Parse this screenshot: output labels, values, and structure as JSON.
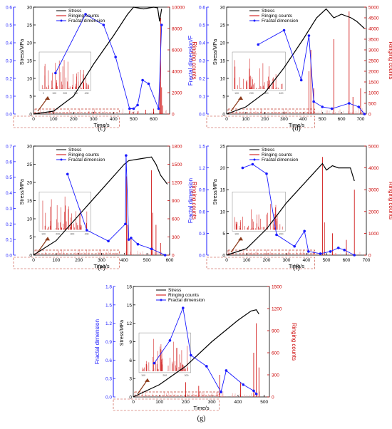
{
  "chart_data": [
    {
      "panel_label": "(c)",
      "type": "line",
      "xlabel": "Time/s",
      "ylabel_left": "Fractal dimension",
      "ylabel_stress": "Stress/MPa",
      "ylabel_right": "Ringing counts",
      "xlim": [
        0,
        680
      ],
      "x_ticks": [
        0,
        100,
        200,
        300,
        400,
        500,
        600
      ],
      "fd_lim": [
        0,
        0.6
      ],
      "fd_ticks": [
        0.0,
        0.1,
        0.2,
        0.3,
        0.4,
        0.5,
        0.6
      ],
      "stress_lim": [
        0,
        30
      ],
      "stress_ticks": [
        0,
        5,
        10,
        15,
        20,
        25,
        30
      ],
      "rc_lim": [
        0,
        10000
      ],
      "rc_ticks": [
        0,
        2000,
        4000,
        6000,
        8000,
        10000
      ],
      "legend": [
        "Stress",
        "Ringing counts",
        "Fractal dimension"
      ],
      "inset_x_ticks": [
        "0",
        "100",
        "200",
        "300",
        "400"
      ],
      "stress": [
        [
          0,
          0
        ],
        [
          100,
          0.8
        ],
        [
          200,
          5
        ],
        [
          300,
          14
        ],
        [
          400,
          22
        ],
        [
          470,
          28
        ],
        [
          500,
          30
        ],
        [
          550,
          29.5
        ],
        [
          600,
          30
        ],
        [
          620,
          29.8
        ],
        [
          630,
          26
        ],
        [
          640,
          29.5
        ]
      ],
      "fractal_dimension": [
        [
          110,
          0.23
        ],
        [
          260,
          0.56
        ],
        [
          350,
          0.5
        ],
        [
          410,
          0.32
        ],
        [
          480,
          0.03
        ],
        [
          500,
          0.03
        ],
        [
          520,
          0.05
        ],
        [
          545,
          0.19
        ],
        [
          575,
          0.17
        ],
        [
          625,
          0.03
        ],
        [
          640,
          0.5
        ]
      ],
      "ringing_spikes": [
        [
          630,
          3000
        ],
        [
          635,
          9000
        ],
        [
          640,
          2500
        ],
        [
          645,
          800
        ],
        [
          480,
          300
        ],
        [
          520,
          250
        ],
        [
          560,
          400
        ],
        [
          600,
          500
        ]
      ]
    },
    {
      "panel_label": "(d)",
      "type": "line",
      "xlabel": "Time/s",
      "ylabel_left": "Fractal dimension/F",
      "ylabel_stress": "Stress/MPa",
      "ylabel_right": "Ringing counts",
      "xlim": [
        0,
        730
      ],
      "x_ticks": [
        0,
        100,
        200,
        300,
        400,
        500,
        600,
        700
      ],
      "fd_lim": [
        0,
        0.6
      ],
      "fd_ticks": [
        0.0,
        0.1,
        0.2,
        0.3,
        0.4,
        0.5,
        0.6
      ],
      "stress_lim": [
        0,
        30
      ],
      "stress_ticks": [
        0,
        5,
        10,
        15,
        20,
        25,
        30
      ],
      "rc_lim": [
        0,
        5000
      ],
      "rc_ticks": [
        0,
        500,
        1000,
        1500,
        2000,
        2500,
        3000,
        3500,
        4000,
        4500,
        5000
      ],
      "legend": [
        "Stress",
        "Ringing counts",
        "Fractal dimension"
      ],
      "inset_x_ticks": [
        "100",
        "200",
        "300",
        "400"
      ],
      "stress": [
        [
          0,
          0
        ],
        [
          100,
          2
        ],
        [
          200,
          6
        ],
        [
          300,
          13
        ],
        [
          400,
          21
        ],
        [
          470,
          27
        ],
        [
          520,
          29.5
        ],
        [
          560,
          27
        ],
        [
          600,
          28
        ],
        [
          650,
          27
        ],
        [
          680,
          26
        ],
        [
          720,
          24
        ]
      ],
      "fractal_dimension": [
        [
          165,
          0.39
        ],
        [
          300,
          0.47
        ],
        [
          390,
          0.19
        ],
        [
          430,
          0.44
        ],
        [
          455,
          0.07
        ],
        [
          500,
          0.04
        ],
        [
          550,
          0.03
        ],
        [
          640,
          0.06
        ],
        [
          690,
          0.04
        ],
        [
          720,
          0.0
        ]
      ],
      "ringing_spikes": [
        [
          430,
          2000
        ],
        [
          440,
          3000
        ],
        [
          455,
          1200
        ],
        [
          560,
          3500
        ],
        [
          640,
          4800
        ],
        [
          660,
          800
        ],
        [
          700,
          1200
        ]
      ]
    },
    {
      "panel_label": "(e)",
      "type": "line",
      "xlabel": "Time/s",
      "ylabel_left": "Fractal dimension",
      "ylabel_stress": "Stress/MPa",
      "ylabel_right": "Ringing counts",
      "xlim": [
        0,
        600
      ],
      "x_ticks": [
        0,
        100,
        200,
        300,
        400,
        500,
        600
      ],
      "fd_lim": [
        0,
        0.7
      ],
      "fd_ticks": [
        0.0,
        0.1,
        0.2,
        0.3,
        0.4,
        0.5,
        0.6,
        0.7
      ],
      "stress_lim": [
        0,
        30
      ],
      "stress_ticks": [
        0,
        5,
        10,
        15,
        20,
        25,
        30
      ],
      "rc_lim": [
        0,
        1800
      ],
      "rc_ticks": [
        0,
        300,
        600,
        900,
        1200,
        1500,
        1800
      ],
      "legend": [
        "Stress",
        "Ringing counts",
        "Fractal dimension"
      ],
      "inset_x_ticks": [
        "100",
        "200",
        "300",
        "400"
      ],
      "stress": [
        [
          0,
          0
        ],
        [
          100,
          4
        ],
        [
          200,
          11
        ],
        [
          300,
          18
        ],
        [
          400,
          25
        ],
        [
          420,
          26
        ],
        [
          470,
          26.5
        ],
        [
          520,
          27
        ],
        [
          540,
          25
        ],
        [
          560,
          22
        ],
        [
          590,
          19.5
        ]
      ],
      "fractal_dimension": [
        [
          150,
          0.52
        ],
        [
          235,
          0.16
        ],
        [
          330,
          0.09
        ],
        [
          405,
          0.2
        ],
        [
          408,
          0.64
        ],
        [
          420,
          0.1
        ],
        [
          430,
          0.11
        ],
        [
          460,
          0.07
        ],
        [
          520,
          0.04
        ],
        [
          580,
          0.0
        ]
      ],
      "ringing_spikes": [
        [
          410,
          1300
        ],
        [
          415,
          500
        ],
        [
          430,
          300
        ],
        [
          520,
          1400
        ],
        [
          525,
          700
        ],
        [
          540,
          500
        ],
        [
          560,
          200
        ]
      ]
    },
    {
      "panel_label": "(f)",
      "type": "line",
      "xlabel": "Time/s",
      "ylabel_left": "Fractal dimension",
      "ylabel_stress": "Stress/MPa",
      "ylabel_right": "Ringing counts",
      "xlim": [
        0,
        700
      ],
      "x_ticks": [
        0,
        100,
        200,
        300,
        400,
        500,
        600,
        700
      ],
      "fd_lim": [
        0,
        1.5
      ],
      "fd_ticks": [
        0.0,
        0.3,
        0.6,
        0.9,
        1.2,
        1.5
      ],
      "stress_lim": [
        0,
        25
      ],
      "stress_ticks": [
        0,
        5,
        10,
        15,
        20,
        25
      ],
      "rc_lim": [
        0,
        5000
      ],
      "rc_ticks": [
        0,
        1000,
        2000,
        3000,
        4000,
        5000
      ],
      "legend": [
        "Stress",
        "Ringing counts",
        "Fractal dimension"
      ],
      "inset_x_ticks": [
        "100",
        "200"
      ],
      "stress": [
        [
          0,
          0
        ],
        [
          100,
          1.5
        ],
        [
          200,
          6
        ],
        [
          300,
          12
        ],
        [
          400,
          17
        ],
        [
          480,
          21
        ],
        [
          500,
          19.5
        ],
        [
          530,
          20.5
        ],
        [
          560,
          20
        ],
        [
          620,
          20
        ],
        [
          640,
          17
        ]
      ],
      "fractal_dimension": [
        [
          80,
          1.2
        ],
        [
          130,
          1.25
        ],
        [
          200,
          1.12
        ],
        [
          250,
          0.28
        ],
        [
          340,
          0.12
        ],
        [
          390,
          0.33
        ],
        [
          410,
          0.05
        ],
        [
          470,
          0.02
        ],
        [
          520,
          0.05
        ],
        [
          560,
          0.1
        ],
        [
          590,
          0.07
        ],
        [
          640,
          0.0
        ]
      ],
      "ringing_spikes": [
        [
          480,
          4500
        ],
        [
          490,
          1500
        ],
        [
          530,
          1000
        ],
        [
          600,
          700
        ],
        [
          640,
          3000
        ]
      ]
    },
    {
      "panel_label": "(g)",
      "type": "line",
      "xlabel": "Time/s",
      "ylabel_left": "Fractal dimension",
      "ylabel_stress": "Stress/MPa",
      "ylabel_right": "Ringing counts",
      "xlim": [
        0,
        520
      ],
      "x_ticks": [
        0,
        100,
        200,
        300,
        400,
        500
      ],
      "fd_lim": [
        0,
        1.8
      ],
      "fd_ticks": [
        0.0,
        0.3,
        0.6,
        0.9,
        1.2,
        1.5,
        1.8
      ],
      "stress_lim": [
        0,
        18
      ],
      "stress_ticks": [
        0,
        3,
        6,
        9,
        12,
        15,
        18
      ],
      "rc_lim": [
        0,
        1500
      ],
      "rc_ticks": [
        0,
        300,
        600,
        900,
        1200,
        1500
      ],
      "legend": [
        "Stress",
        "Ringing counts",
        "Fractal dimension"
      ],
      "inset_x_ticks": [
        "100",
        "200",
        "300"
      ],
      "stress": [
        [
          0,
          0
        ],
        [
          100,
          2
        ],
        [
          200,
          5
        ],
        [
          300,
          9
        ],
        [
          400,
          12.5
        ],
        [
          450,
          14
        ],
        [
          470,
          14.2
        ],
        [
          480,
          13.5
        ]
      ],
      "fractal_dimension": [
        [
          80,
          0.55
        ],
        [
          140,
          0.92
        ],
        [
          190,
          1.45
        ],
        [
          220,
          0.68
        ],
        [
          280,
          0.5
        ],
        [
          335,
          0.08
        ],
        [
          355,
          0.43
        ],
        [
          420,
          0.2
        ],
        [
          460,
          0.1
        ],
        [
          470,
          0.05
        ]
      ],
      "ringing_spikes": [
        [
          200,
          200
        ],
        [
          250,
          150
        ],
        [
          330,
          300
        ],
        [
          410,
          200
        ],
        [
          460,
          600
        ],
        [
          470,
          1000
        ],
        [
          480,
          400
        ]
      ]
    }
  ]
}
